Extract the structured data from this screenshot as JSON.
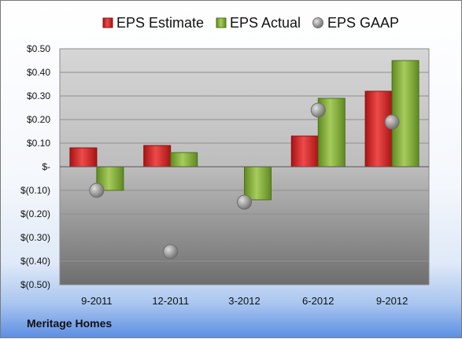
{
  "footer": {
    "company": "Meritage Homes"
  },
  "legend": {
    "estimate": "EPS Estimate",
    "actual": "EPS Actual",
    "gaap": "EPS GAAP"
  },
  "colors": {
    "estimate": "#d42a2a",
    "actual": "#86ad3a",
    "gaap": "#a8a8a8"
  },
  "chart_data": {
    "type": "bar",
    "categories": [
      "9-2011",
      "12-2011",
      "3-2012",
      "6-2012",
      "9-2012"
    ],
    "series": [
      {
        "name": "EPS Estimate",
        "values": [
          0.08,
          0.09,
          null,
          0.13,
          0.32
        ]
      },
      {
        "name": "EPS Actual",
        "values": [
          -0.1,
          0.06,
          -0.14,
          0.29,
          0.45
        ]
      },
      {
        "name": "EPS GAAP",
        "type": "scatter",
        "values": [
          -0.1,
          -0.36,
          -0.15,
          0.24,
          0.19
        ]
      }
    ],
    "ylim": [
      -0.5,
      0.5
    ],
    "yticks": [
      0.5,
      0.4,
      0.3,
      0.2,
      0.1,
      0,
      -0.1,
      -0.2,
      -0.3,
      -0.4,
      -0.5
    ],
    "ytick_labels": [
      "$0.50",
      "$0.40",
      "$0.30",
      "$0.20",
      "$0.10",
      "$-",
      "$(0.10)",
      "$(0.20)",
      "$(0.30)",
      "$(0.40)",
      "$(0.50)"
    ],
    "legend_position": "top",
    "grid": true
  }
}
